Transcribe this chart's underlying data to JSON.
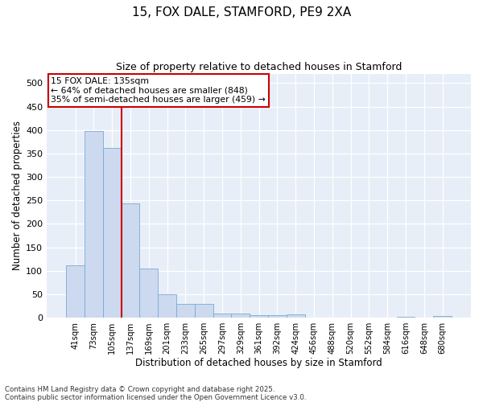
{
  "title1": "15, FOX DALE, STAMFORD, PE9 2XA",
  "title2": "Size of property relative to detached houses in Stamford",
  "xlabel": "Distribution of detached houses by size in Stamford",
  "ylabel": "Number of detached properties",
  "categories": [
    "41sqm",
    "73sqm",
    "105sqm",
    "137sqm",
    "169sqm",
    "201sqm",
    "233sqm",
    "265sqm",
    "297sqm",
    "329sqm",
    "361sqm",
    "392sqm",
    "424sqm",
    "456sqm",
    "488sqm",
    "520sqm",
    "552sqm",
    "584sqm",
    "616sqm",
    "648sqm",
    "680sqm"
  ],
  "values": [
    112,
    397,
    362,
    243,
    105,
    50,
    29,
    29,
    9,
    8,
    6,
    6,
    7,
    1,
    1,
    0,
    1,
    0,
    2,
    1,
    3
  ],
  "bar_color": "#ccd9ee",
  "bar_edge_color": "#7aaad4",
  "red_line_index": 3,
  "annotation_title": "15 FOX DALE: 135sqm",
  "annotation_line1": "← 64% of detached houses are smaller (848)",
  "annotation_line2": "35% of semi-detached houses are larger (459) →",
  "annotation_box_color": "#ffffff",
  "annotation_box_edge_color": "#cc0000",
  "red_line_color": "#cc0000",
  "ylim": [
    0,
    520
  ],
  "yticks": [
    0,
    50,
    100,
    150,
    200,
    250,
    300,
    350,
    400,
    450,
    500
  ],
  "footnote1": "Contains HM Land Registry data © Crown copyright and database right 2025.",
  "footnote2": "Contains public sector information licensed under the Open Government Licence v3.0.",
  "fig_color": "#ffffff",
  "bg_color": "#e8eef8",
  "grid_color": "#ffffff"
}
